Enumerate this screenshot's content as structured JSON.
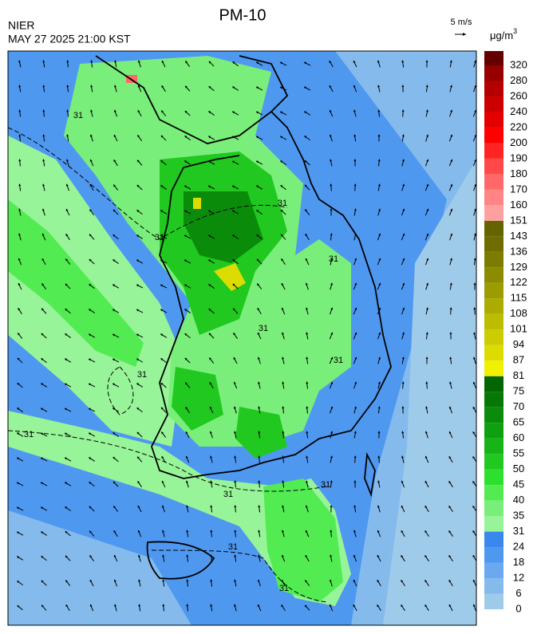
{
  "header": {
    "title": "PM-10",
    "agency": "NIER",
    "timestamp": "MAY 27 2025 21:00 KST",
    "wind_scale": "5 m/s"
  },
  "colorbar": {
    "unit_base": "μg/m",
    "unit_exponent": "3",
    "levels": [
      0,
      6,
      12,
      18,
      24,
      31,
      35,
      40,
      45,
      50,
      55,
      60,
      65,
      70,
      75,
      81,
      87,
      94,
      101,
      108,
      115,
      122,
      129,
      136,
      143,
      151,
      160,
      170,
      180,
      190,
      200,
      220,
      240,
      260,
      280,
      320
    ],
    "colors": [
      "#9fcbea",
      "#84bbec",
      "#6aa9ef",
      "#4f98f0",
      "#3a88ee",
      "#98f498",
      "#7aee7a",
      "#52ec52",
      "#2ee02e",
      "#20c820",
      "#16b416",
      "#0ea00e",
      "#0a8c0a",
      "#067806",
      "#026602",
      "#f0f000",
      "#dcdc00",
      "#cccc00",
      "#bcbc00",
      "#acac00",
      "#9c9c00",
      "#8c8c00",
      "#7c7c00",
      "#6e6e00",
      "#646400",
      "#ffa0a0",
      "#ff8484",
      "#ff6868",
      "#ff4848",
      "#ff2424",
      "#ff0000",
      "#e40000",
      "#cc0000",
      "#b40000",
      "#960000",
      "#640000"
    ]
  },
  "map": {
    "contour_labels": [
      "31",
      "31",
      "31",
      "31",
      "31",
      "31",
      "31",
      "31",
      "31",
      "31",
      "31",
      "31"
    ]
  }
}
